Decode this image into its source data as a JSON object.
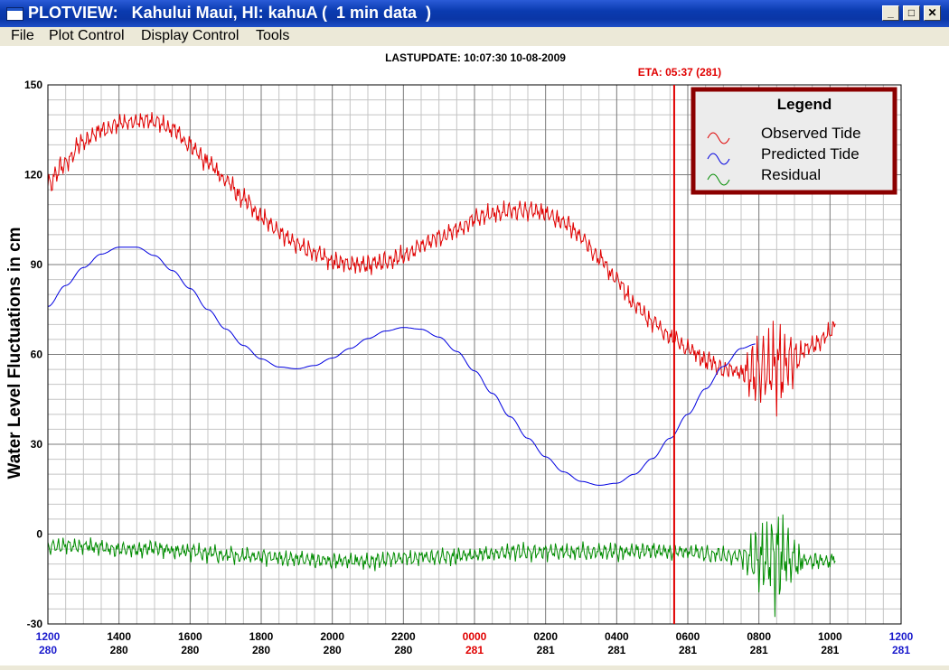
{
  "window": {
    "title": "PLOTVIEW:   Kahului Maui, HI: kahuA (  1 min data  )"
  },
  "buttons": {
    "minimize": "_",
    "maximize": "□",
    "close": "✕"
  },
  "menu": [
    "File",
    "Plot Control",
    "Display Control",
    "Tools"
  ],
  "header": {
    "last_update": "LASTUPDATE: 10:07:30  10-08-2009",
    "eta": "ETA: 05:37 (281)"
  },
  "colors": {
    "observed": "#e00000",
    "predicted": "#0000e0",
    "residual": "#008c00",
    "eta_line": "#e00000",
    "frame_border": "#8b0000"
  },
  "legend": {
    "title": "Legend",
    "items": [
      "Observed Tide",
      "Predicted Tide",
      "Residual"
    ]
  },
  "chart_data": {
    "type": "line",
    "ylabel": "Water Level Fluctuations in cm",
    "ylim": [
      -30,
      150
    ],
    "yticks": [
      150,
      120,
      90,
      60,
      30,
      0,
      -30
    ],
    "xlim_hours": [
      0,
      24
    ],
    "xticks": [
      {
        "time": "1200",
        "day": "280",
        "h": 0,
        "color": "blue"
      },
      {
        "time": "1400",
        "day": "280",
        "h": 2,
        "color": "black"
      },
      {
        "time": "1600",
        "day": "280",
        "h": 4,
        "color": "black"
      },
      {
        "time": "1800",
        "day": "280",
        "h": 6,
        "color": "black"
      },
      {
        "time": "2000",
        "day": "280",
        "h": 8,
        "color": "black"
      },
      {
        "time": "2200",
        "day": "280",
        "h": 10,
        "color": "black"
      },
      {
        "time": "0000",
        "day": "281",
        "h": 12,
        "color": "red"
      },
      {
        "time": "0200",
        "day": "281",
        "h": 14,
        "color": "black"
      },
      {
        "time": "0400",
        "day": "281",
        "h": 16,
        "color": "black"
      },
      {
        "time": "0600",
        "day": "281",
        "h": 18,
        "color": "black"
      },
      {
        "time": "0800",
        "day": "281",
        "h": 20,
        "color": "black"
      },
      {
        "time": "1000",
        "day": "281",
        "h": 22,
        "color": "black"
      },
      {
        "time": "1200",
        "day": "281",
        "h": 24,
        "color": "blue"
      }
    ],
    "eta_hour": 17.617,
    "series": [
      {
        "name": "Observed Tide",
        "color": "#e00000",
        "noise": 3.5,
        "points": [
          [
            0,
            117
          ],
          [
            0.5,
            124
          ],
          [
            1,
            131
          ],
          [
            1.5,
            135
          ],
          [
            2,
            137
          ],
          [
            2.5,
            138
          ],
          [
            3,
            138
          ],
          [
            3.5,
            135
          ],
          [
            4,
            130
          ],
          [
            4.5,
            124
          ],
          [
            5,
            118
          ],
          [
            5.5,
            112
          ],
          [
            6,
            106
          ],
          [
            6.5,
            101
          ],
          [
            7,
            97
          ],
          [
            7.5,
            94
          ],
          [
            8,
            91
          ],
          [
            8.5,
            90
          ],
          [
            9,
            90
          ],
          [
            9.5,
            91
          ],
          [
            10,
            93
          ],
          [
            10.5,
            96
          ],
          [
            11,
            99
          ],
          [
            11.5,
            102
          ],
          [
            12,
            105
          ],
          [
            12.5,
            107
          ],
          [
            13,
            108
          ],
          [
            13.5,
            108
          ],
          [
            14,
            107
          ],
          [
            14.5,
            104
          ],
          [
            15,
            99
          ],
          [
            15.5,
            92
          ],
          [
            16,
            85
          ],
          [
            16.5,
            77
          ],
          [
            17,
            71
          ],
          [
            17.5,
            66
          ],
          [
            18,
            62
          ],
          [
            18.5,
            58
          ],
          [
            19,
            55
          ],
          [
            19.5,
            54
          ],
          [
            20,
            54
          ],
          [
            20.5,
            56
          ],
          [
            21,
            59
          ],
          [
            21.5,
            63
          ],
          [
            22,
            67
          ],
          [
            22.17,
            70
          ]
        ]
      },
      {
        "name": "Predicted Tide",
        "color": "#0000e0",
        "noise": 0,
        "points": [
          [
            0,
            76
          ],
          [
            0.5,
            83
          ],
          [
            1,
            89
          ],
          [
            1.5,
            93.5
          ],
          [
            2,
            95.8
          ],
          [
            2.5,
            95.8
          ],
          [
            3,
            93
          ],
          [
            3.5,
            88
          ],
          [
            4,
            82
          ],
          [
            4.5,
            75
          ],
          [
            5,
            68.5
          ],
          [
            5.5,
            63
          ],
          [
            6,
            58.5
          ],
          [
            6.5,
            55.8
          ],
          [
            7,
            55.2
          ],
          [
            7.5,
            56.3
          ],
          [
            8,
            58.8
          ],
          [
            8.5,
            62
          ],
          [
            9,
            65.3
          ],
          [
            9.5,
            67.8
          ],
          [
            10,
            69
          ],
          [
            10.5,
            68.4
          ],
          [
            11,
            65.8
          ],
          [
            11.5,
            61
          ],
          [
            12,
            54.5
          ],
          [
            12.5,
            47
          ],
          [
            13,
            39.2
          ],
          [
            13.5,
            32
          ],
          [
            14,
            25.8
          ],
          [
            14.5,
            20.8
          ],
          [
            15,
            17.6
          ],
          [
            15.5,
            16.3
          ],
          [
            16,
            17
          ],
          [
            16.5,
            20
          ],
          [
            17,
            25.2
          ],
          [
            17.5,
            32
          ],
          [
            18,
            40
          ],
          [
            18.5,
            48.5
          ],
          [
            19,
            56
          ],
          [
            19.5,
            62
          ],
          [
            19.92,
            63.5
          ]
        ]
      },
      {
        "name": "Residual",
        "color": "#008c00",
        "noise": 3,
        "points": [
          [
            0,
            -4
          ],
          [
            1,
            -4
          ],
          [
            2,
            -5
          ],
          [
            3,
            -5
          ],
          [
            4,
            -6
          ],
          [
            5,
            -7
          ],
          [
            6,
            -7.5
          ],
          [
            7,
            -8.5
          ],
          [
            8,
            -9
          ],
          [
            9,
            -9
          ],
          [
            10,
            -8
          ],
          [
            11,
            -7.5
          ],
          [
            12,
            -7
          ],
          [
            13,
            -6
          ],
          [
            14,
            -6
          ],
          [
            15,
            -6
          ],
          [
            16,
            -6
          ],
          [
            17,
            -5.5
          ],
          [
            18,
            -6
          ],
          [
            19,
            -7
          ],
          [
            20,
            -8
          ],
          [
            21,
            -9
          ],
          [
            22,
            -9
          ],
          [
            22.17,
            -8
          ]
        ]
      }
    ],
    "noise_bursts": [
      {
        "from_h": 19.5,
        "to_h": 21.3,
        "amp": 14
      }
    ]
  }
}
